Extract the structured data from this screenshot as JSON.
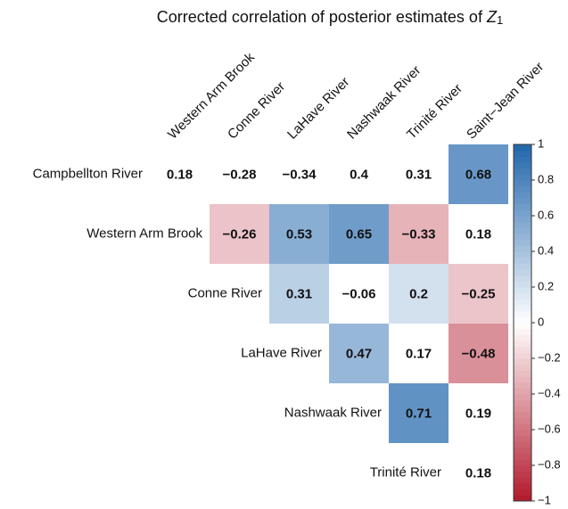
{
  "chart_data": {
    "type": "heatmap",
    "title": "Corrected correlation of posterior estimates of",
    "title_symbol": "Z",
    "title_subscript": "1",
    "rows": [
      "Campbellton River",
      "Western Arm Brook",
      "Conne River",
      "LaHave River",
      "Nashwaak River",
      "Trinité River"
    ],
    "columns": [
      "Western Arm Brook",
      "Conne River",
      "LaHave River",
      "Nashwaak River",
      "Trinité River",
      "Saint−Jean River"
    ],
    "values": [
      [
        0.18,
        -0.28,
        -0.34,
        0.4,
        0.31,
        0.68
      ],
      [
        null,
        -0.26,
        0.53,
        0.65,
        -0.33,
        0.18
      ],
      [
        null,
        null,
        0.31,
        -0.06,
        0.2,
        -0.25
      ],
      [
        null,
        null,
        null,
        0.47,
        0.17,
        -0.48
      ],
      [
        null,
        null,
        null,
        null,
        0.71,
        0.19
      ],
      [
        null,
        null,
        null,
        null,
        null,
        0.18
      ]
    ],
    "value_labels": [
      [
        "0.18",
        "−0.28",
        "−0.34",
        "0.4",
        "0.31",
        "0.68"
      ],
      [
        null,
        "−0.26",
        "0.53",
        "0.65",
        "−0.33",
        "0.18"
      ],
      [
        null,
        null,
        "0.31",
        "−0.06",
        "0.2",
        "−0.25"
      ],
      [
        null,
        null,
        null,
        "0.47",
        "0.17",
        "−0.48"
      ],
      [
        null,
        null,
        null,
        null,
        "0.71",
        "0.19"
      ],
      [
        null,
        null,
        null,
        null,
        null,
        "0.18"
      ]
    ],
    "shaded": [
      [
        false,
        false,
        false,
        false,
        false,
        true
      ],
      [
        null,
        true,
        true,
        true,
        true,
        false
      ],
      [
        null,
        null,
        true,
        false,
        true,
        true
      ],
      [
        null,
        null,
        null,
        true,
        false,
        true
      ],
      [
        null,
        null,
        null,
        null,
        true,
        false
      ],
      [
        null,
        null,
        null,
        null,
        null,
        false
      ]
    ],
    "colors": {
      "low": "#b2182b",
      "mid": "#ffffff",
      "high": "#2166ac"
    },
    "clim": [
      -1,
      1
    ],
    "cticks": [
      {
        "value": -1,
        "label": "−1"
      },
      {
        "value": -0.8,
        "label": "−0.8"
      },
      {
        "value": -0.6,
        "label": "−0.6"
      },
      {
        "value": -0.4,
        "label": "−0.4"
      },
      {
        "value": -0.2,
        "label": "−0.2"
      },
      0,
      0.2,
      0.4,
      0.6,
      0.8,
      1
    ]
  }
}
